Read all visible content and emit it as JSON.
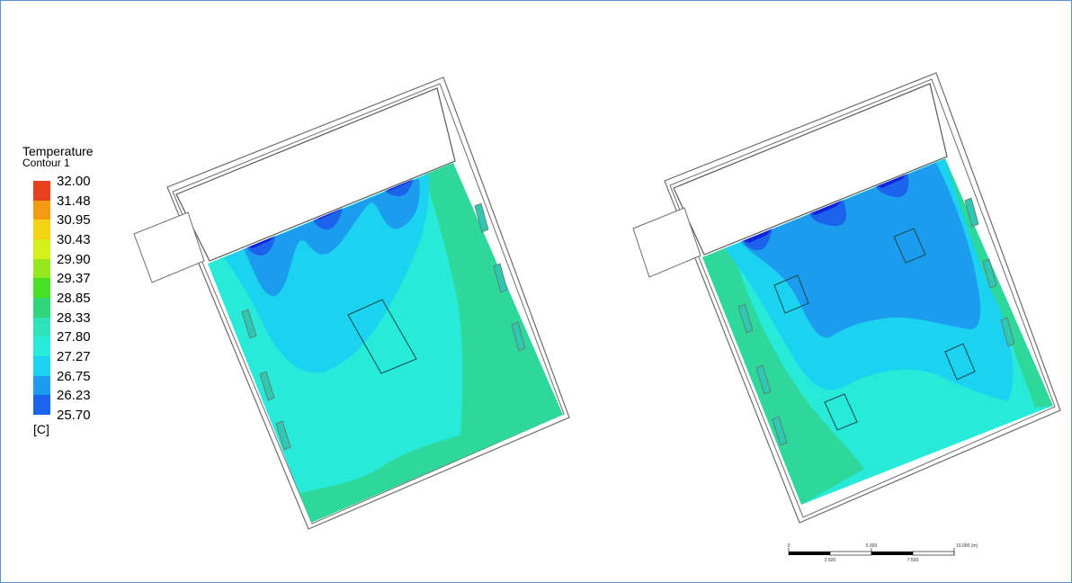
{
  "legend": {
    "title": "Temperature",
    "subtitle": "Contour 1",
    "unit": "[C]",
    "ticks": [
      "32.00",
      "31.48",
      "30.95",
      "30.43",
      "29.90",
      "29.37",
      "28.85",
      "28.33",
      "27.80",
      "27.27",
      "26.75",
      "26.23",
      "25.70"
    ],
    "colors": [
      "#e8401c",
      "#f49a12",
      "#f2d214",
      "#d6ef1c",
      "#95e81f",
      "#47e024",
      "#2ed87a",
      "#2ee3b8",
      "#27ead8",
      "#1bd2f0",
      "#1c9cef",
      "#1c63ec",
      "#1024e0"
    ]
  },
  "scale_bar": {
    "labels_top": [
      "0",
      "5.000",
      "10.000 (m)"
    ],
    "labels_bottom": [
      "2.500",
      "7.500"
    ]
  }
}
